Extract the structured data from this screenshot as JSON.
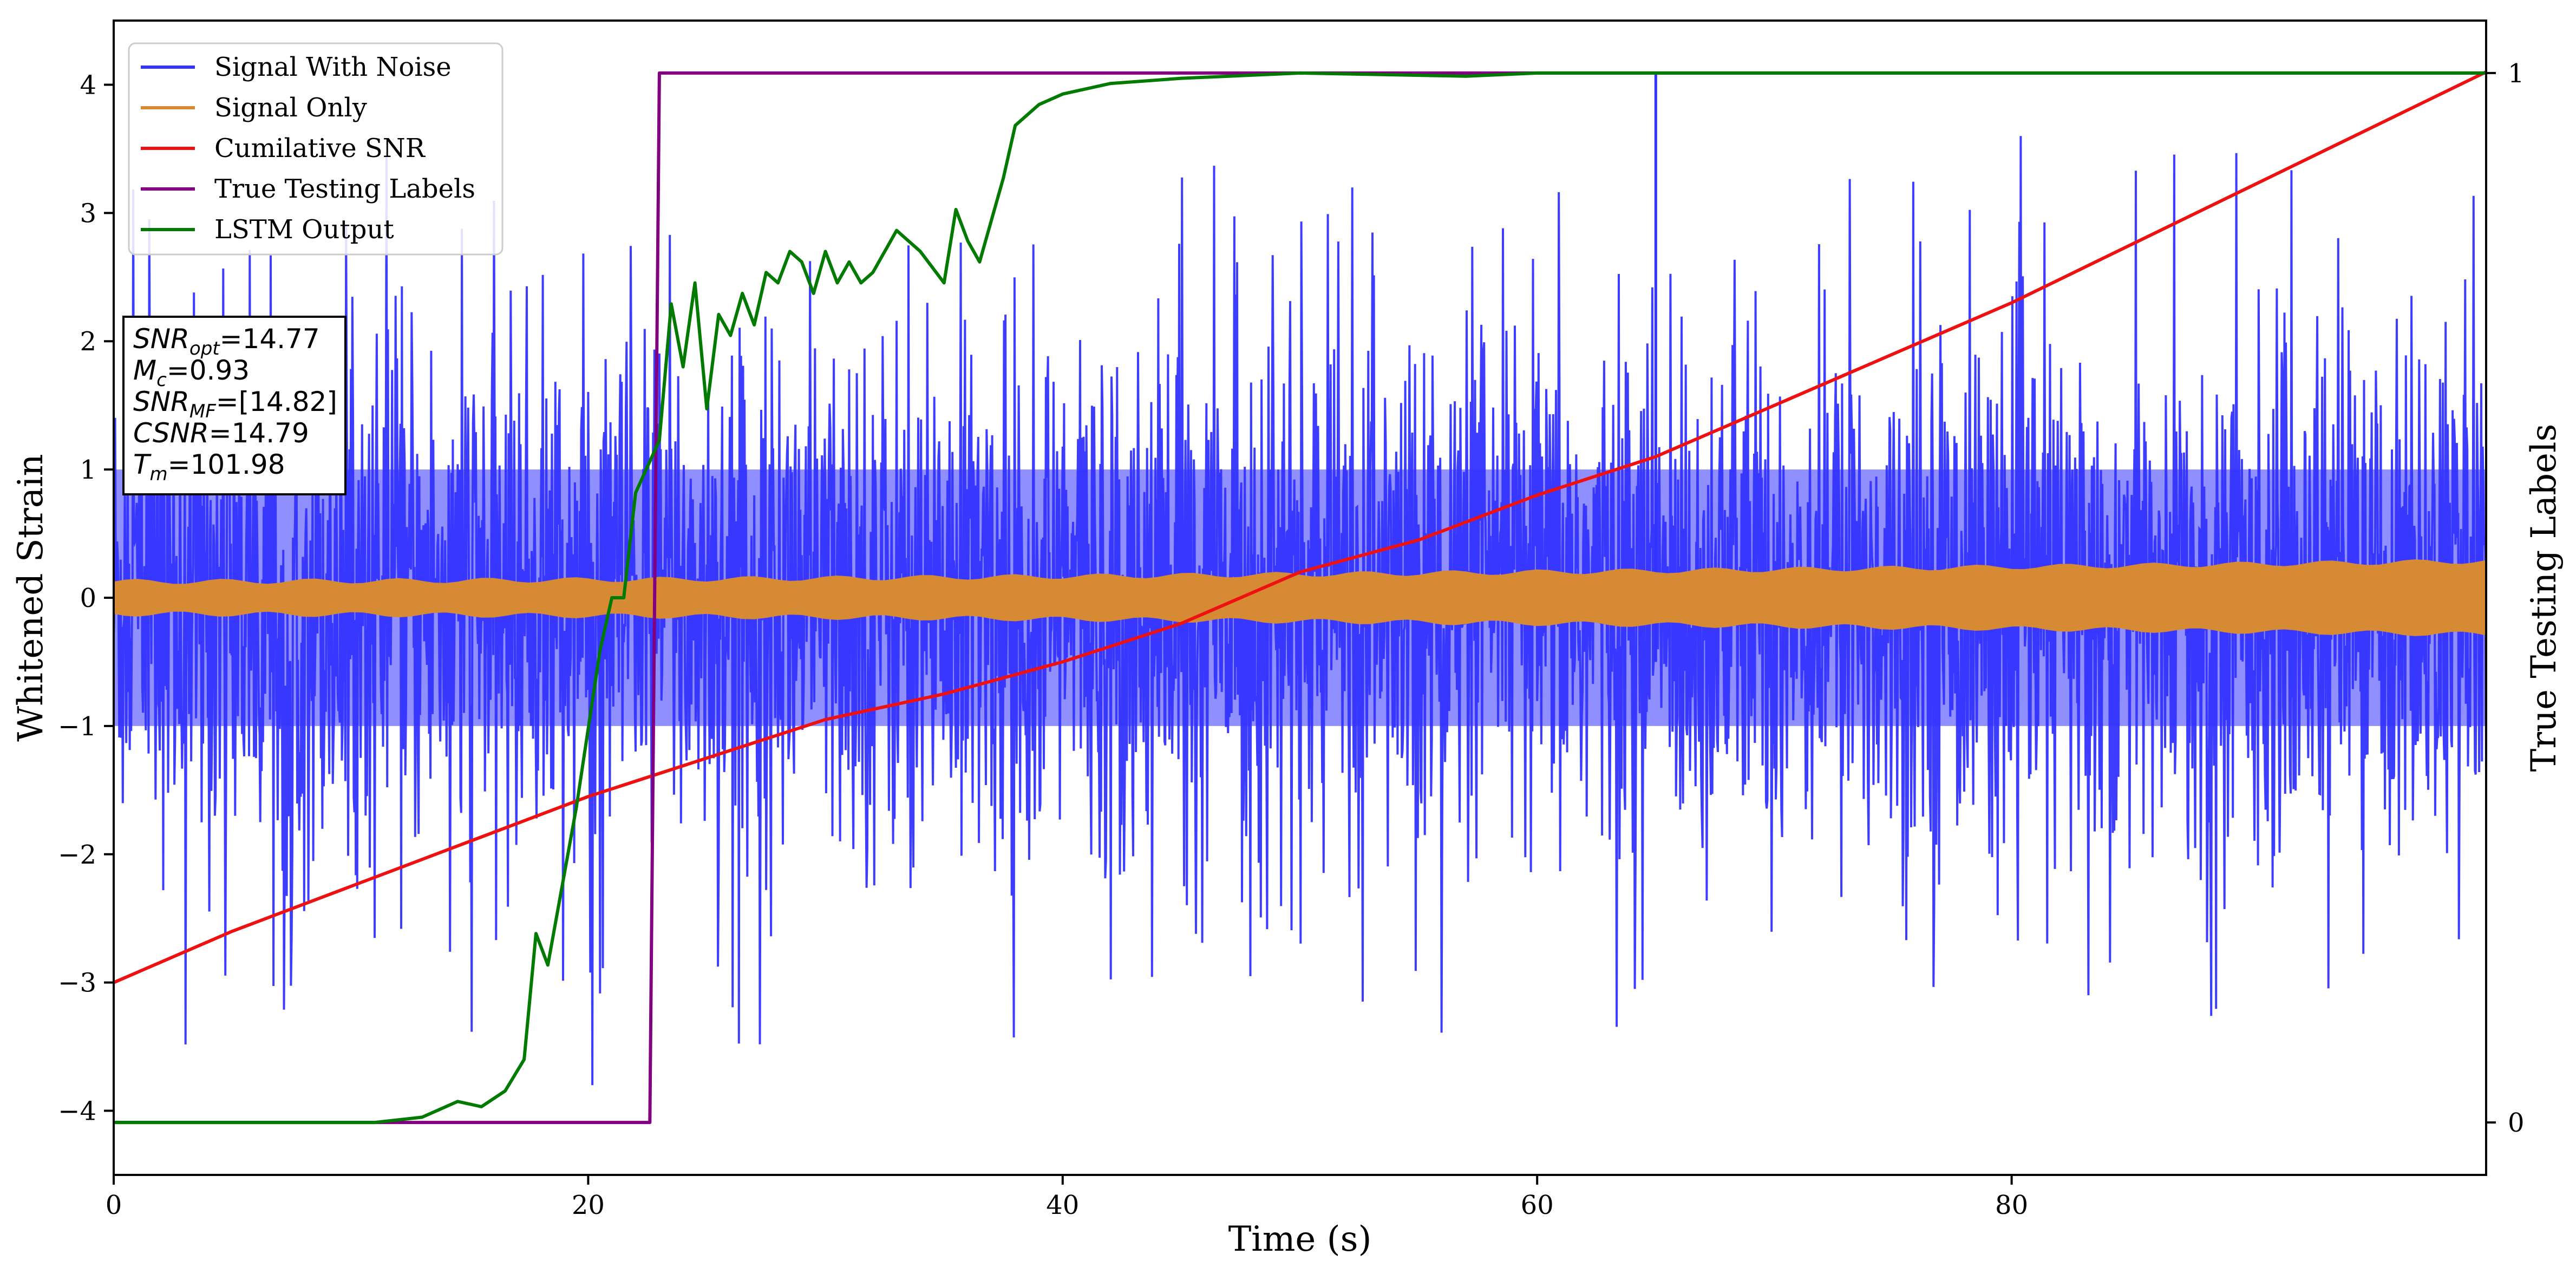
{
  "chart_data": {
    "type": "line",
    "xlabel": "Time (s)",
    "ylabel": "Whitened Strain",
    "y2label": "True Testing Labels",
    "xlim": [
      0,
      100
    ],
    "ylim": [
      -4.5,
      4.5
    ],
    "y2lim": [
      -0.05,
      1.05
    ],
    "x_ticks": [
      "0",
      "20",
      "40",
      "60",
      "80"
    ],
    "y_ticks": [
      "−4",
      "−3",
      "−2",
      "−1",
      "0",
      "1",
      "2",
      "3",
      "4"
    ],
    "y2_ticks": [
      "0",
      "1"
    ],
    "legend_position": "upper-left",
    "colors": {
      "noise": "#3333ff",
      "signal": "#d68a33",
      "csnr": "#ee1111",
      "labels": "#800080",
      "lstm": "#007a00"
    },
    "series": [
      {
        "name": "Signal With Noise",
        "style": "noise",
        "typical_amplitude": 2.4,
        "peak": 4.1
      },
      {
        "name": "Signal Only",
        "style": "signal",
        "envelope_start": 0.12,
        "envelope_end": 0.28
      },
      {
        "name": "Cumilative SNR",
        "x": [
          0,
          5,
          10,
          15,
          20,
          25,
          30,
          35,
          40,
          45,
          50,
          55,
          60,
          65,
          70,
          75,
          80,
          85,
          90,
          95,
          100
        ],
        "y": [
          -3.0,
          -2.6,
          -2.25,
          -1.9,
          -1.55,
          -1.25,
          -0.95,
          -0.75,
          -0.5,
          -0.2,
          0.2,
          0.45,
          0.8,
          1.1,
          1.5,
          1.9,
          2.3,
          2.75,
          3.2,
          3.65,
          4.1
        ]
      },
      {
        "name": "True Testing Labels",
        "axis": "right",
        "x": [
          0,
          22.6,
          23.0,
          100
        ],
        "y": [
          0,
          0,
          1,
          1
        ]
      },
      {
        "name": "LSTM Output",
        "axis": "right",
        "x": [
          0,
          11,
          13,
          14.5,
          15.5,
          16.5,
          17.3,
          17.8,
          18.3,
          19.5,
          20.5,
          21,
          21.5,
          22,
          23,
          23.5,
          24,
          24.5,
          25,
          25.5,
          26,
          26.5,
          27,
          27.5,
          28,
          28.5,
          29,
          29.5,
          30,
          30.5,
          31,
          31.5,
          32,
          33,
          34,
          35,
          35.5,
          36,
          36.5,
          37,
          37.5,
          38,
          39,
          40,
          42,
          45,
          50,
          57,
          60,
          65,
          100
        ],
        "y": [
          0,
          0,
          0.005,
          0.02,
          0.015,
          0.03,
          0.06,
          0.18,
          0.15,
          0.3,
          0.45,
          0.5,
          0.5,
          0.6,
          0.65,
          0.78,
          0.72,
          0.8,
          0.68,
          0.77,
          0.75,
          0.79,
          0.76,
          0.81,
          0.8,
          0.83,
          0.82,
          0.79,
          0.83,
          0.8,
          0.82,
          0.8,
          0.81,
          0.85,
          0.83,
          0.8,
          0.87,
          0.84,
          0.82,
          0.86,
          0.9,
          0.95,
          0.97,
          0.98,
          0.99,
          0.995,
          1.0,
          0.997,
          1.0,
          1.0,
          1.0
        ]
      }
    ],
    "annotation": {
      "lines": [
        {
          "sym": "SNR",
          "sub": "opt",
          "value": "=14.77"
        },
        {
          "sym": "M",
          "sub": "c",
          "value": "=0.93"
        },
        {
          "sym": "SNR",
          "sub": "MF",
          "value": "=[14.82]"
        },
        {
          "sym": "CSNR",
          "sub": "",
          "value": "=14.79"
        },
        {
          "sym": "T",
          "sub": "m",
          "value": "=101.98"
        }
      ]
    }
  }
}
